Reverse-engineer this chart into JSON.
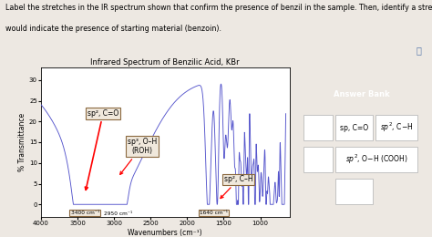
{
  "title": "Infrared Spectrum of Benzilic Acid, KBr",
  "xlabel": "Wavenumbers (cm⁻¹)",
  "ylabel": "% Transmittance",
  "xlim": [
    4000,
    600
  ],
  "ylim": [
    -3,
    33
  ],
  "yticks": [
    0,
    5,
    10,
    15,
    20,
    25,
    30
  ],
  "xticks": [
    4000,
    3500,
    3000,
    2500,
    2000,
    1500,
    1000
  ],
  "bg_color": "#ede8e2",
  "plot_bg": "#ffffff",
  "line_color": "#5555cc",
  "q1": "Label the stretches in the IR spectrum shown that confirm the presence of benzil in the sample. Then, identify a stretch that",
  "q2": "would indicate the presence of starting material (benzoin).",
  "ann_sp2_CO_label": "sp², C=O",
  "ann_sp3_OH_label": "sp³, O–H\n(ROH)",
  "ann_sp2_CH_label": "sp², C–H",
  "label_3400": "3400 cm⁻¹",
  "label_2950": "2950 cm⁻¹",
  "label_1640": "1640 cm⁻¹",
  "box_facecolor": "#f0e8dc",
  "box_edgecolor": "#8b6940",
  "ab_header_bg": "#7a5c3a",
  "ab_body_bg": "#e8e0d8",
  "ab_title": "Answer Bank",
  "ab_item1": "sp, C=O",
  "ab_item2": "sp², C–H",
  "ab_item3": "sp², O–H (COOH)"
}
